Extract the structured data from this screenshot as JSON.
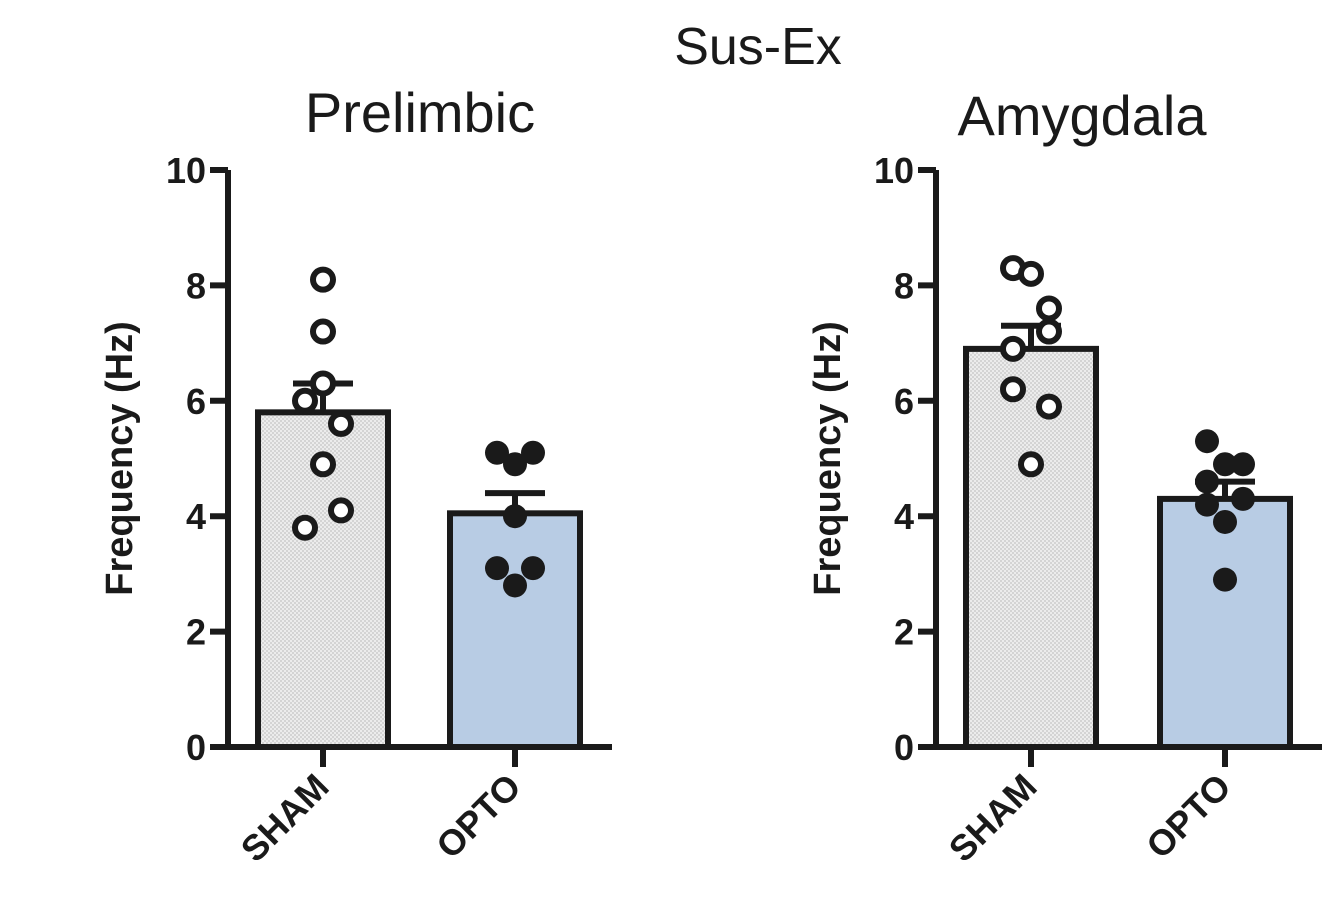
{
  "figure": {
    "title": "Sus-Ex"
  },
  "colors": {
    "sham_fill": "#ececec",
    "opto_fill": "#b8cce4",
    "ink": "#1a1a1a"
  },
  "chart_data": [
    {
      "type": "bar",
      "title": "Prelimbic",
      "xlabel": "",
      "ylabel": "Frequency (Hz)",
      "ylim": [
        0,
        10
      ],
      "yticks": [
        "0",
        "2",
        "4",
        "6",
        "8",
        "10"
      ],
      "categories": [
        "SHAM",
        "OPTO"
      ],
      "values": [
        5.8,
        4.05
      ],
      "errors": [
        0.5,
        0.35
      ],
      "points": [
        [
          8.1,
          7.2,
          6.3,
          6.0,
          5.6,
          4.9,
          4.1,
          3.8
        ],
        [
          5.1,
          4.9,
          5.1,
          4.0,
          3.1,
          3.1,
          2.8
        ]
      ],
      "point_style": [
        "open",
        "filled"
      ],
      "grid": false
    },
    {
      "type": "bar",
      "title": "Amygdala",
      "xlabel": "",
      "ylabel": "Frequency (Hz)",
      "ylim": [
        0,
        10
      ],
      "yticks": [
        "0",
        "2",
        "4",
        "6",
        "8",
        "10"
      ],
      "categories": [
        "SHAM",
        "OPTO"
      ],
      "values": [
        6.9,
        4.3
      ],
      "errors": [
        0.4,
        0.3
      ],
      "points": [
        [
          8.3,
          8.2,
          7.6,
          7.2,
          6.9,
          6.2,
          5.9,
          4.9
        ],
        [
          5.3,
          4.9,
          4.9,
          4.6,
          4.3,
          4.2,
          3.9,
          2.9
        ]
      ],
      "point_style": [
        "open",
        "filled"
      ],
      "grid": false
    }
  ]
}
